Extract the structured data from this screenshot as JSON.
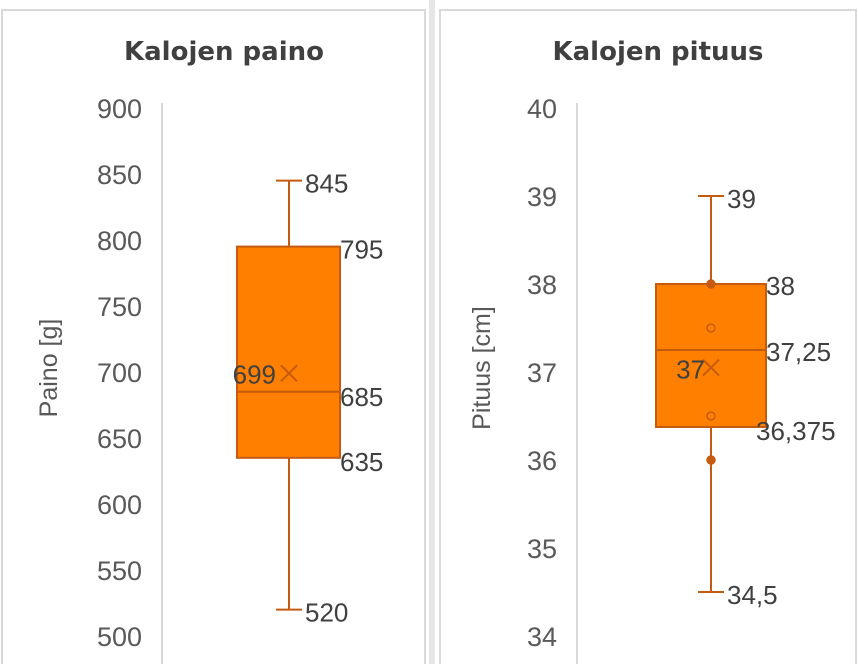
{
  "colors": {
    "box_fill": "#FF8000",
    "box_stroke": "#C55A11",
    "axis_line": "#D9D9D9",
    "text": "#595959",
    "title": "#404040",
    "panel_border": "#D9D9D9"
  },
  "chart_data": [
    {
      "type": "boxplot",
      "title": "Kalojen paino",
      "ylabel": "Paino [g]",
      "xlabel": "",
      "ylim": [
        500,
        900
      ],
      "yticks": [
        500,
        550,
        600,
        650,
        700,
        750,
        800,
        850,
        900
      ],
      "ytick_labels": [
        "500",
        "550",
        "600",
        "650",
        "700",
        "750",
        "800",
        "850",
        "900"
      ],
      "grid": false,
      "whisker_max": 845,
      "q3": 795,
      "median": 685,
      "mean": 699,
      "q1": 635,
      "whisker_min": 520,
      "points": [],
      "labels": {
        "whisker_max": "845",
        "q3": "795",
        "median": "685",
        "mean": "699",
        "q1": "635",
        "whisker_min": "520"
      }
    },
    {
      "type": "boxplot",
      "title": "Kalojen pituus",
      "ylabel": "Pituus [cm]",
      "xlabel": "",
      "ylim": [
        34,
        40
      ],
      "yticks": [
        34,
        35,
        36,
        37,
        38,
        39,
        40
      ],
      "ytick_labels": [
        "34",
        "35",
        "36",
        "37",
        "38",
        "39",
        "40"
      ],
      "grid": false,
      "whisker_max": 39,
      "q3": 38,
      "median": 37.25,
      "mean": 37.05,
      "q1": 36.375,
      "whisker_min": 34.5,
      "points": [
        38,
        37.5,
        36.5,
        36
      ],
      "labels": {
        "whisker_max": "39",
        "q3": "38",
        "median": "37,25",
        "mean": "37",
        "q1": "36,375",
        "whisker_min": "34,5"
      }
    }
  ]
}
